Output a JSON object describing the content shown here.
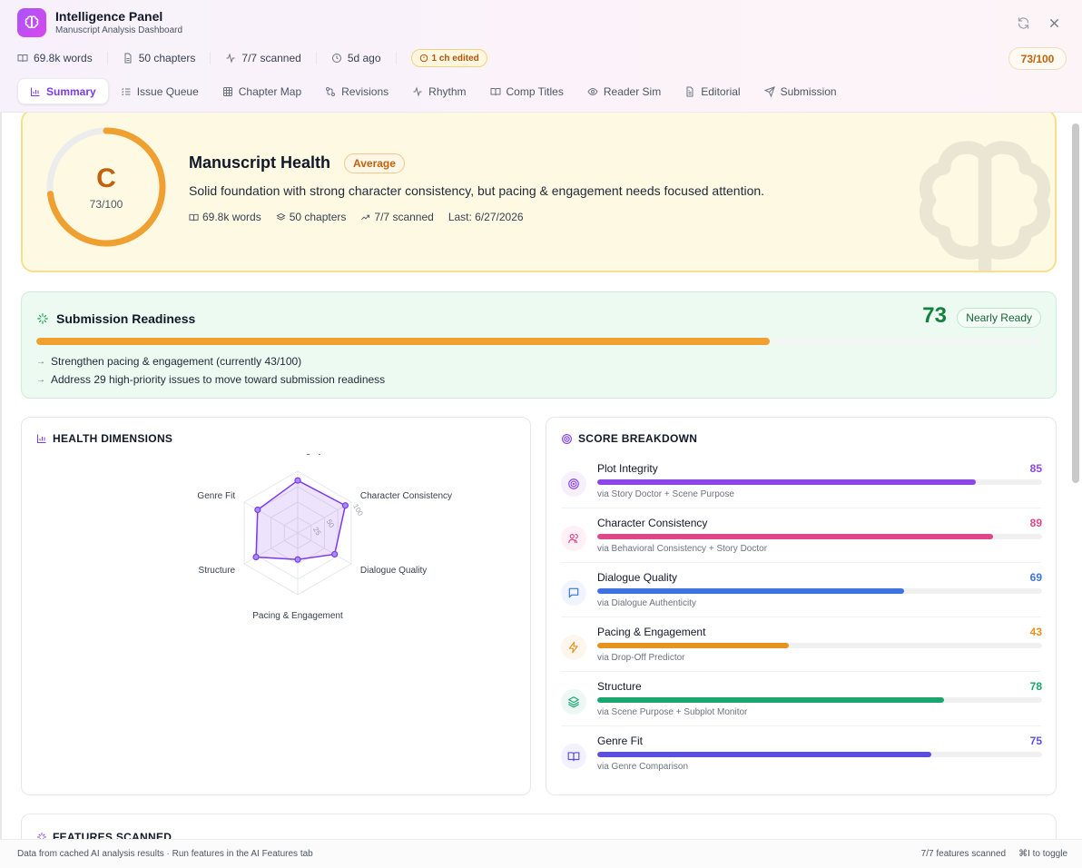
{
  "header": {
    "title": "Intelligence Panel",
    "subtitle": "Manuscript Analysis Dashboard",
    "meta": {
      "words": "69.8k words",
      "chapters": "50 chapters",
      "scanned": "7/7 scanned",
      "updated": "5d ago",
      "edited": "1 ch edited"
    },
    "score": "73/100"
  },
  "tabs": [
    "Summary",
    "Issue Queue",
    "Chapter Map",
    "Revisions",
    "Rhythm",
    "Comp Titles",
    "Reader Sim",
    "Editorial",
    "Submission"
  ],
  "health": {
    "grade": "C",
    "score": "73/100",
    "score_value": 73,
    "title": "Manuscript Health",
    "badge": "Average",
    "description": "Solid foundation with strong character consistency, but pacing & engagement needs focused attention.",
    "words": "69.8k words",
    "chapters": "50 chapters",
    "scanned": "7/7 scanned",
    "last": "Last: 6/27/2026"
  },
  "readiness": {
    "title": "Submission Readiness",
    "score": "73",
    "score_value": 73,
    "badge": "Nearly Ready",
    "items": [
      "Strengthen pacing & engagement (currently 43/100)",
      "Address 29 high-priority issues to move toward submission readiness"
    ]
  },
  "health_dimensions": {
    "title": "HEALTH DIMENSIONS",
    "axes": [
      "Plot Integrity",
      "Character Consistency",
      "Dialogue Quality",
      "Pacing & Engagement",
      "Structure",
      "Genre Fit"
    ],
    "tick_labels": [
      "25",
      "50",
      "100"
    ],
    "accent": "#7c3aed"
  },
  "chart_data": {
    "type": "radar",
    "categories": [
      "Plot Integrity",
      "Character Consistency",
      "Dialogue Quality",
      "Pacing & Engagement",
      "Structure",
      "Genre Fit"
    ],
    "values": [
      85,
      89,
      69,
      43,
      78,
      75
    ],
    "range": [
      0,
      100
    ],
    "rings": 4
  },
  "score_breakdown": {
    "title": "SCORE BREAKDOWN",
    "items": [
      {
        "name": "Plot Integrity",
        "score": "85",
        "value": 85,
        "source": "via Story Doctor + Scene Purpose",
        "color": "#8b45e6",
        "icon": "target-icon"
      },
      {
        "name": "Character Consistency",
        "score": "89",
        "value": 89,
        "source": "via Behavioral Consistency + Story Doctor",
        "color": "#e0468a",
        "icon": "users-icon"
      },
      {
        "name": "Dialogue Quality",
        "score": "69",
        "value": 69,
        "source": "via Dialogue Authenticity",
        "color": "#3b74e0",
        "icon": "message-icon"
      },
      {
        "name": "Pacing & Engagement",
        "score": "43",
        "value": 43,
        "source": "via Drop-Off Predictor",
        "color": "#e8911f",
        "icon": "bolt-icon"
      },
      {
        "name": "Structure",
        "score": "78",
        "value": 78,
        "source": "via Scene Purpose + Subplot Monitor",
        "color": "#1aa56f",
        "icon": "layers-icon"
      },
      {
        "name": "Genre Fit",
        "score": "75",
        "value": 75,
        "source": "via Genre Comparison",
        "color": "#5b4fe0",
        "icon": "book-icon"
      }
    ]
  },
  "features": {
    "title": "FEATURES SCANNED"
  },
  "footer": {
    "left": "Data from cached AI analysis results · Run features in the AI Features tab",
    "features": "7/7 features scanned",
    "shortcut": "⌘I to toggle"
  }
}
